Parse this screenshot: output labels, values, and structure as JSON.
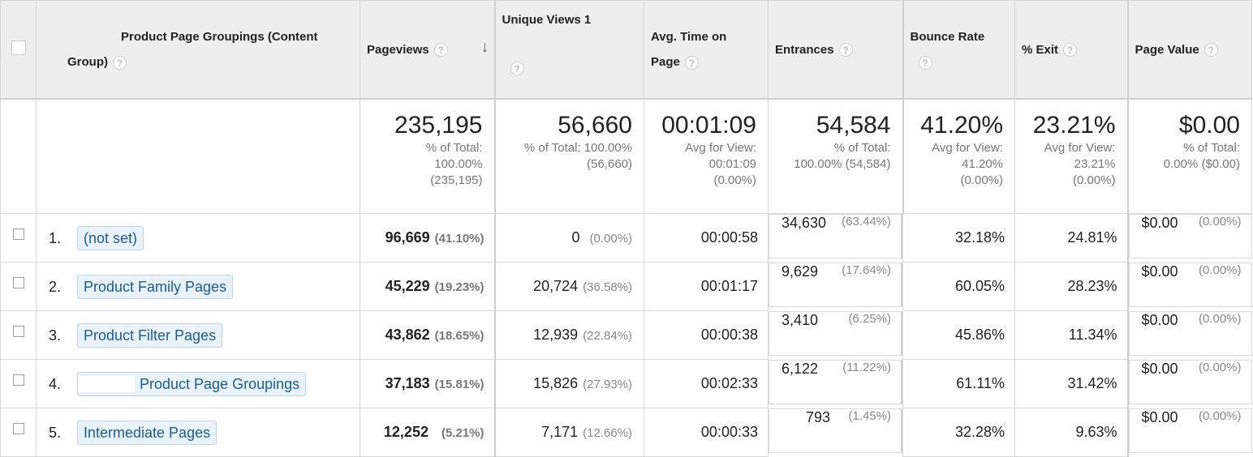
{
  "headers": {
    "dimension": {
      "line1": "Product Page Groupings (Content",
      "line2": "Group)"
    },
    "pageviews": "Pageviews",
    "unique_views": "Unique Views 1",
    "avg_time": {
      "line1": "Avg. Time on",
      "line2": "Page"
    },
    "entrances": "Entrances",
    "bounce_rate": "Bounce Rate",
    "exit": "% Exit",
    "page_value": "Page Value",
    "help_glyph": "?",
    "sort_glyph": "↓"
  },
  "totals": {
    "pageviews": {
      "value": "235,195",
      "l1": "% of Total:",
      "l2": "100.00%",
      "l3": "(235,195)"
    },
    "unique_views": {
      "value": "56,660",
      "l1": "% of Total: 100.00%",
      "l2": "(56,660)"
    },
    "avg_time": {
      "value": "00:01:09",
      "l1": "Avg for View:",
      "l2": "00:01:09",
      "l3": "(0.00%)"
    },
    "entrances": {
      "value": "54,584",
      "l1": "% of Total:",
      "l2": "100.00% (54,584)"
    },
    "bounce_rate": {
      "value": "41.20%",
      "l1": "Avg for View:",
      "l2": "41.20%",
      "l3": "(0.00%)"
    },
    "exit": {
      "value": "23.21%",
      "l1": "Avg for View:",
      "l2": "23.21%",
      "l3": "(0.00%)"
    },
    "page_value": {
      "value": "$0.00",
      "l1": "% of Total:",
      "l2": "0.00% ($0.00)"
    }
  },
  "rows": [
    {
      "index": "1.",
      "name": "(not set)",
      "pageviews": "96,669",
      "pageviews_pct": "(41.10%)",
      "unique": "0",
      "unique_pct": "(0.00%)",
      "avg_time": "00:00:58",
      "entrances": "34,630",
      "entrances_pct": "(63.44%)",
      "bounce": "32.18%",
      "exit": "24.81%",
      "value": "$0.00",
      "value_pct": "(0.00%)"
    },
    {
      "index": "2.",
      "name": "Product Family Pages",
      "pageviews": "45,229",
      "pageviews_pct": "(19.23%)",
      "unique": "20,724",
      "unique_pct": "(36.58%)",
      "avg_time": "00:01:17",
      "entrances": "9,629",
      "entrances_pct": "(17.64%)",
      "bounce": "60.05%",
      "exit": "28.23%",
      "value": "$0.00",
      "value_pct": "(0.00%)"
    },
    {
      "index": "3.",
      "name": "Product Filter Pages",
      "pageviews": "43,862",
      "pageviews_pct": "(18.65%)",
      "unique": "12,939",
      "unique_pct": "(22.84%)",
      "avg_time": "00:00:38",
      "entrances": "3,410",
      "entrances_pct": "(6.25%)",
      "bounce": "45.86%",
      "exit": "11.34%",
      "value": "$0.00",
      "value_pct": "(0.00%)"
    },
    {
      "index": "4.",
      "name": "Product Page Groupings",
      "pageviews": "37,183",
      "pageviews_pct": "(15.81%)",
      "unique": "15,826",
      "unique_pct": "(27.93%)",
      "avg_time": "00:02:33",
      "entrances": "6,122",
      "entrances_pct": "(11.22%)",
      "bounce": "61.11%",
      "exit": "31.42%",
      "value": "$0.00",
      "value_pct": "(0.00%)"
    },
    {
      "index": "5.",
      "name": "Intermediate Pages",
      "pageviews": "12,252",
      "pageviews_pct": "(5.21%)",
      "unique": "7,171",
      "unique_pct": "(12.66%)",
      "avg_time": "00:00:33",
      "entrances": "793",
      "entrances_pct": "(1.45%)",
      "bounce": "32.28%",
      "exit": "9.63%",
      "value": "$0.00",
      "value_pct": "(0.00%)"
    }
  ]
}
